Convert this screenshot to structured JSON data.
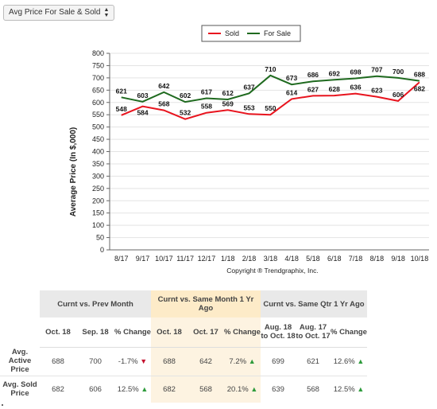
{
  "dropdown": {
    "label": "Avg Price For Sale & Sold"
  },
  "chart_data": {
    "type": "line",
    "categories": [
      "8/17",
      "9/17",
      "10/17",
      "11/17",
      "12/17",
      "1/18",
      "2/18",
      "3/18",
      "4/18",
      "5/18",
      "6/18",
      "7/18",
      "8/18",
      "9/18",
      "10/18"
    ],
    "series": [
      {
        "name": "Sold",
        "color": "#e8141e",
        "values": [
          548,
          584,
          568,
          532,
          558,
          569,
          553,
          550,
          614,
          627,
          628,
          636,
          623,
          606,
          682
        ]
      },
      {
        "name": "For Sale",
        "color": "#1f6a1f",
        "values": [
          621,
          603,
          642,
          602,
          617,
          612,
          637,
          710,
          673,
          686,
          692,
          698,
          707,
          700,
          688
        ]
      }
    ],
    "ylabel": "Average Price (In $,000)",
    "ylim": [
      0,
      800
    ],
    "yticks": [
      0,
      50,
      100,
      150,
      200,
      250,
      300,
      350,
      400,
      450,
      500,
      550,
      600,
      650,
      700,
      750,
      800
    ],
    "grid": true,
    "legend": "top-right",
    "copyright": "Copyright ® Trendgraphix, Inc."
  },
  "table": {
    "groups": [
      "Curnt vs. Prev Month",
      "Curnt vs. Same Month 1 Yr Ago",
      "Curnt vs. Same Qtr 1 Yr Ago"
    ],
    "columns": [
      "Oct. 18",
      "Sep. 18",
      "% Change",
      "Oct. 18",
      "Oct. 17",
      "% Change",
      "Aug. 18 to Oct. 18",
      "Aug. 17 to Oct. 17",
      "% Change"
    ],
    "rows": [
      {
        "label": "Avg. Active Price",
        "values": [
          "688",
          "700",
          "-1.7%",
          "688",
          "642",
          "7.2%",
          "699",
          "621",
          "12.6%"
        ],
        "trends": [
          "down",
          "up",
          "up"
        ]
      },
      {
        "label": "Avg. Sold Price",
        "values": [
          "682",
          "606",
          "12.5%",
          "682",
          "568",
          "20.1%",
          "639",
          "568",
          "12.5%"
        ],
        "trends": [
          "up",
          "up",
          "up"
        ]
      }
    ]
  }
}
